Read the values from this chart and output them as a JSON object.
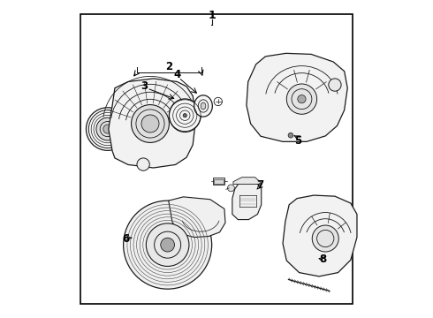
{
  "background_color": "#ffffff",
  "line_color": "#1a1a1a",
  "border_color": "#000000",
  "fig_width": 4.9,
  "fig_height": 3.6,
  "dpi": 100,
  "border": [
    0.07,
    0.04,
    0.93,
    0.96
  ],
  "label_fontsize": 8.5,
  "label_fontsize_1": 9.0
}
